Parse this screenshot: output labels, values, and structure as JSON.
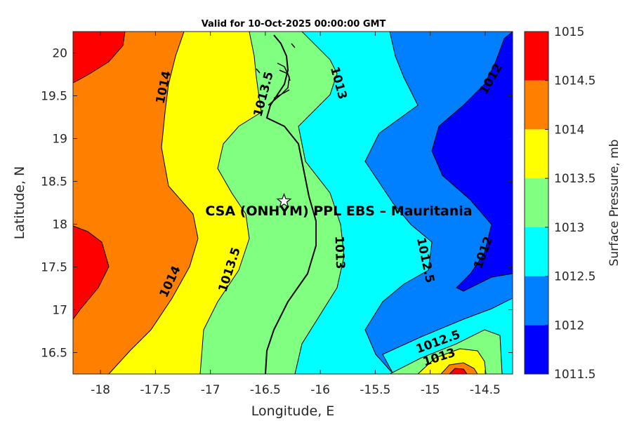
{
  "chart_data": {
    "type": "contour",
    "title": "Valid for 10-Oct-2025 00:00:00 GMT",
    "xlabel": "Longitude, E",
    "ylabel": "Latitude, N",
    "xlim": [
      -18.25,
      -14.25
    ],
    "ylim": [
      16.25,
      20.25
    ],
    "xticks": [
      -18,
      -17.5,
      -17,
      -16.5,
      -16,
      -15.5,
      -15,
      -14.5
    ],
    "xtick_labels": [
      "-18",
      "-17.5",
      "-17",
      "-16.5",
      "-16",
      "-15.5",
      "-15",
      "-14.5"
    ],
    "yticks": [
      16.5,
      17,
      17.5,
      18,
      18.5,
      19,
      19.5,
      20
    ],
    "ytick_labels": [
      "16.5",
      "17",
      "17.5",
      "18",
      "18.5",
      "19",
      "19.5",
      "20"
    ],
    "colorbar": {
      "title": "Surface Pressure, mb",
      "levels": [
        1011.5,
        1012,
        1012.5,
        1013,
        1013.5,
        1014,
        1014.5,
        1015
      ],
      "level_labels": [
        "1011.5",
        "1012",
        "1012.5",
        "1013",
        "1013.5",
        "1014",
        "1014.5",
        "1015"
      ],
      "colors": [
        "#0000ff",
        "#0080ff",
        "#00ffff",
        "#80ff80",
        "#ffff00",
        "#ff8000",
        "#ff0000",
        "#800000"
      ]
    },
    "contour_labels": [
      {
        "text": "1014",
        "lon": -17.43,
        "lat": 19.6,
        "angle": -78
      },
      {
        "text": "1013.5",
        "lon": -16.52,
        "lat": 19.52,
        "angle": -75
      },
      {
        "text": "1013",
        "lon": -15.83,
        "lat": 19.65,
        "angle": 75
      },
      {
        "text": "1012",
        "lon": -14.45,
        "lat": 19.7,
        "angle": -60
      },
      {
        "text": "1014",
        "lon": -17.37,
        "lat": 17.33,
        "angle": -65
      },
      {
        "text": "1013.5",
        "lon": -16.83,
        "lat": 17.47,
        "angle": -72
      },
      {
        "text": "1013",
        "lon": -15.82,
        "lat": 17.67,
        "angle": 88
      },
      {
        "text": "1012.5",
        "lon": -15.04,
        "lat": 17.58,
        "angle": 78
      },
      {
        "text": "1012",
        "lon": -14.52,
        "lat": 17.67,
        "angle": -70
      },
      {
        "text": "1012.5",
        "lon": -14.93,
        "lat": 16.63,
        "angle": -20
      },
      {
        "text": "1013",
        "lon": -14.92,
        "lat": 16.45,
        "angle": -18
      }
    ],
    "marker": {
      "symbol": "star",
      "lon": -16.33,
      "lat": 18.27
    },
    "annotation": {
      "text": "CSA (ONHYM) PPL EBS  – Mauritania",
      "lon": -16.33,
      "lat": 18.16
    }
  }
}
